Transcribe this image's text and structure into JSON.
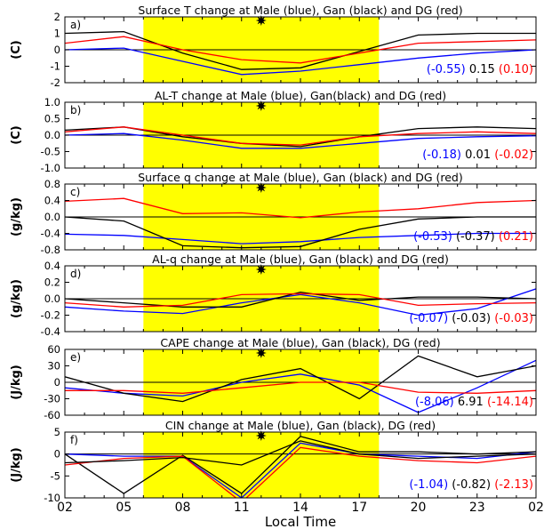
{
  "figure": {
    "xlabel": "Local Time",
    "x_ticks": [
      "02",
      "05",
      "08",
      "11",
      "14",
      "17",
      "20",
      "23",
      "02"
    ],
    "daytime_shading": {
      "from": 6,
      "to": 18,
      "color": "#ffff00"
    },
    "star_marker_time": 12,
    "colors": {
      "Male": "#0000ff",
      "Gan": "#000000",
      "DG": "#ff0000"
    }
  },
  "chart_data": [
    {
      "type": "line",
      "panel_label": "a)",
      "title": "Surface T change at Male (blue), Gan (black) and DG (red)",
      "ylabel": "(C)",
      "ylim": [
        -2,
        2
      ],
      "yticks": [
        "2",
        "1",
        "0",
        "-1",
        "-2"
      ],
      "ytick_values": [
        2,
        1,
        0,
        -1,
        -2
      ],
      "x": [
        2,
        5,
        8,
        11,
        14,
        17,
        20,
        23,
        26
      ],
      "series": [
        {
          "name": "Male",
          "color": "#0000ff",
          "values": [
            0.0,
            0.1,
            -0.7,
            -1.5,
            -1.3,
            -0.9,
            -0.5,
            -0.2,
            0.0
          ]
        },
        {
          "name": "Gan",
          "color": "#000000",
          "values": [
            1.0,
            1.1,
            -0.2,
            -1.2,
            -1.1,
            -0.1,
            0.9,
            1.0,
            1.0
          ]
        },
        {
          "name": "DG",
          "color": "#ff0000",
          "values": [
            0.4,
            0.8,
            0.0,
            -0.6,
            -0.8,
            -0.2,
            0.4,
            0.5,
            0.6
          ]
        }
      ],
      "annotation": [
        {
          "text": "(-0.55)",
          "color": "#0000ff"
        },
        {
          "text": "0.15",
          "color": "#000000"
        },
        {
          "text": "(0.10)",
          "color": "#ff0000"
        }
      ]
    },
    {
      "type": "line",
      "panel_label": "b)",
      "title": "AL-T change at Male (blue), Gan(black) and DG (red)",
      "ylabel": "(C)",
      "ylim": [
        -1,
        1
      ],
      "yticks": [
        "1.0",
        "0.5",
        "0.0",
        "-0.5",
        "-1.0"
      ],
      "ytick_values": [
        1,
        0.5,
        0,
        -0.5,
        -1
      ],
      "x": [
        2,
        5,
        8,
        11,
        14,
        17,
        20,
        23,
        26
      ],
      "series": [
        {
          "name": "Male",
          "color": "#0000ff",
          "values": [
            0.0,
            0.05,
            -0.15,
            -0.4,
            -0.4,
            -0.25,
            -0.1,
            -0.05,
            -0.02
          ]
        },
        {
          "name": "Gan",
          "color": "#000000",
          "values": [
            0.15,
            0.25,
            -0.05,
            -0.25,
            -0.35,
            -0.05,
            0.2,
            0.25,
            0.2
          ]
        },
        {
          "name": "DG",
          "color": "#ff0000",
          "values": [
            0.1,
            0.25,
            0.0,
            -0.25,
            -0.3,
            -0.05,
            0.05,
            0.1,
            0.05
          ]
        }
      ],
      "annotation": [
        {
          "text": "(-0.18)",
          "color": "#0000ff"
        },
        {
          "text": "0.01",
          "color": "#000000"
        },
        {
          "text": "(-0.02)",
          "color": "#ff0000"
        }
      ]
    },
    {
      "type": "line",
      "panel_label": "c)",
      "title": "Surface q change at Male (blue), Gan (black) and DG (red)",
      "ylabel": "(g/kg)",
      "ylim": [
        -0.8,
        0.8
      ],
      "yticks": [
        "0.8",
        "0.4",
        "0.0",
        "-0.4",
        "-0.8"
      ],
      "ytick_values": [
        0.8,
        0.4,
        0,
        -0.4,
        -0.8
      ],
      "x": [
        2,
        5,
        8,
        11,
        14,
        17,
        20,
        23,
        26
      ],
      "series": [
        {
          "name": "Male",
          "color": "#0000ff",
          "values": [
            -0.42,
            -0.45,
            -0.55,
            -0.65,
            -0.6,
            -0.5,
            -0.45,
            -0.4,
            -0.4
          ]
        },
        {
          "name": "Gan",
          "color": "#000000",
          "values": [
            0.0,
            -0.1,
            -0.7,
            -0.75,
            -0.72,
            -0.3,
            -0.05,
            0.0,
            0.0
          ]
        },
        {
          "name": "DG",
          "color": "#ff0000",
          "values": [
            0.38,
            0.45,
            0.08,
            0.1,
            -0.02,
            0.12,
            0.2,
            0.35,
            0.4
          ]
        }
      ],
      "annotation": [
        {
          "text": "(-0.53)",
          "color": "#0000ff"
        },
        {
          "text": "(-0.37)",
          "color": "#000000"
        },
        {
          "text": "(0.21)",
          "color": "#ff0000"
        }
      ]
    },
    {
      "type": "line",
      "panel_label": "d)",
      "title": "AL-q change at Male (blue), Gan (black) and DG (red)",
      "ylabel": "(g/kg)",
      "ylim": [
        -0.4,
        0.4
      ],
      "yticks": [
        "0.4",
        "0.2",
        "0.0",
        "-0.2",
        "-0.4"
      ],
      "ytick_values": [
        0.4,
        0.2,
        0,
        -0.2,
        -0.4
      ],
      "x": [
        2,
        5,
        8,
        11,
        14,
        17,
        20,
        23,
        26
      ],
      "series": [
        {
          "name": "Male",
          "color": "#0000ff",
          "values": [
            -0.1,
            -0.15,
            -0.18,
            -0.05,
            0.05,
            -0.05,
            -0.2,
            -0.12,
            0.12
          ]
        },
        {
          "name": "Gan",
          "color": "#000000",
          "values": [
            0.0,
            -0.05,
            -0.1,
            -0.1,
            0.08,
            -0.02,
            0.02,
            0.02,
            0.0
          ]
        },
        {
          "name": "DG",
          "color": "#ff0000",
          "values": [
            -0.05,
            -0.1,
            -0.08,
            0.05,
            0.06,
            0.05,
            -0.08,
            -0.06,
            -0.05
          ]
        }
      ],
      "annotation": [
        {
          "text": "(-0.07)",
          "color": "#0000ff"
        },
        {
          "text": "(-0.03)",
          "color": "#000000"
        },
        {
          "text": "(-0.03)",
          "color": "#ff0000"
        }
      ]
    },
    {
      "type": "line",
      "panel_label": "e)",
      "title": "CAPE change at Male (blue), Gan (black), DG (red)",
      "ylabel": "(J/kg)",
      "ylim": [
        -60,
        60
      ],
      "yticks": [
        "60",
        "30",
        "0",
        "-30",
        "-60"
      ],
      "ytick_values": [
        60,
        30,
        0,
        -30,
        -60
      ],
      "x": [
        2,
        5,
        8,
        11,
        14,
        17,
        20,
        23,
        26
      ],
      "series": [
        {
          "name": "Male",
          "color": "#0000ff",
          "values": [
            -10,
            -20,
            -25,
            0,
            15,
            -5,
            -55,
            -10,
            40
          ]
        },
        {
          "name": "Gan",
          "color": "#000000",
          "values": [
            10,
            -20,
            -35,
            5,
            25,
            -30,
            48,
            10,
            30
          ]
        },
        {
          "name": "DG",
          "color": "#ff0000",
          "values": [
            -15,
            -15,
            -20,
            -10,
            0,
            0,
            -18,
            -20,
            -15
          ]
        }
      ],
      "annotation": [
        {
          "text": "(-8.06)",
          "color": "#0000ff"
        },
        {
          "text": "6.91",
          "color": "#000000"
        },
        {
          "text": "(-14.14)",
          "color": "#ff0000"
        }
      ]
    },
    {
      "type": "line",
      "panel_label": "f)",
      "title": "CIN change at Male (blue), Gan (black), DG (red)",
      "ylabel": "(J/kg)",
      "ylim": [
        -10,
        5
      ],
      "yticks": [
        "5",
        "0",
        "-5",
        "-10"
      ],
      "ytick_values": [
        5,
        0,
        -5,
        -10
      ],
      "x": [
        2,
        5,
        8,
        11,
        14,
        17,
        20,
        23,
        26
      ],
      "series": [
        {
          "name": "Male",
          "color": "#0000ff",
          "values": [
            0.0,
            -0.5,
            -0.5,
            -10,
            2.5,
            0.0,
            -0.5,
            -1.0,
            0.5
          ]
        },
        {
          "name": "Gan",
          "color": "#000000",
          "values": [
            0.0,
            -9.0,
            -0.3,
            -9.0,
            4.0,
            0.5,
            0.5,
            0.0,
            0.5
          ]
        },
        {
          "name": "DG",
          "color": "#ff0000",
          "values": [
            -2.5,
            -1.0,
            -0.5,
            -11,
            1.5,
            -0.5,
            -1.5,
            -2.0,
            -0.5
          ]
        },
        {
          "name": "Gan (2nd)",
          "color": "#000000",
          "values": [
            -2.0,
            -1.5,
            -0.8,
            -2.5,
            3.0,
            0.0,
            -1.0,
            -0.5,
            0.0
          ]
        }
      ],
      "annotation": [
        {
          "text": "(-1.04)",
          "color": "#0000ff"
        },
        {
          "text": "(-0.82)",
          "color": "#000000"
        },
        {
          "text": "(-2.13)",
          "color": "#ff0000"
        }
      ]
    }
  ]
}
